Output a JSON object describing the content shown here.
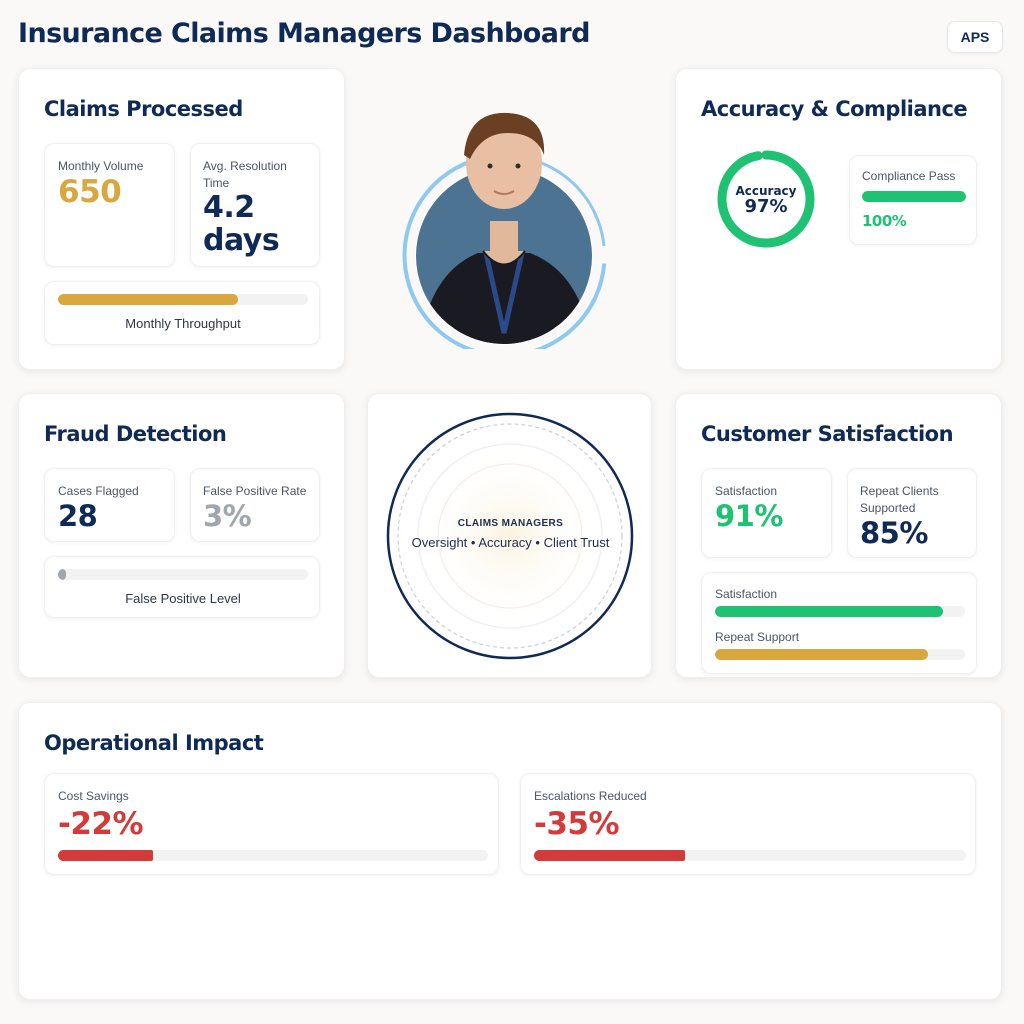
{
  "header": {
    "title": "Insurance Claims Managers Dashboard",
    "badge": "APS"
  },
  "claims": {
    "title": "Claims Processed",
    "monthly_volume_label": "Monthly Volume",
    "monthly_volume_value": "650",
    "resolution_label": "Avg. Resolution Time",
    "resolution_value_line1": "4.2",
    "resolution_value_line2": "days",
    "throughput_label": "Monthly Throughput",
    "throughput_fraction": 0.72
  },
  "profile": {
    "icon": "person-photo"
  },
  "accuracy": {
    "title": "Accuracy & Compliance",
    "ring_label": "Accuracy",
    "ring_value": "97%",
    "ring_fraction": 0.97,
    "compliance_label": "Compliance Pass",
    "compliance_value": "100%",
    "compliance_fraction": 1.0
  },
  "fraud": {
    "title": "Fraud Detection",
    "flagged_label": "Cases Flagged",
    "flagged_value": "28",
    "fpr_label": "False Positive Rate",
    "fpr_value": "3%",
    "level_label": "False Positive Level",
    "level_fraction": 0.03
  },
  "center_badge": {
    "heading": "CLAIMS MANAGERS",
    "tagline": "Oversight • Accuracy • Client Trust"
  },
  "satisfaction": {
    "title": "Customer Satisfaction",
    "sat_label": "Satisfaction",
    "sat_value": "91%",
    "repeat_label": "Repeat Clients Supported",
    "repeat_value": "85%",
    "bar1_label": "Satisfaction",
    "bar1_fraction": 0.91,
    "bar2_label": "Repeat Support",
    "bar2_fraction": 0.85
  },
  "impact": {
    "title": "Operational Impact",
    "cost_label": "Cost Savings",
    "cost_value": "-22%",
    "cost_fraction": 0.22,
    "esc_label": "Escalations Reduced",
    "esc_value": "-35%",
    "esc_fraction": 0.35
  },
  "colors": {
    "navy": "#0f2a55",
    "gold": "#d9a73d",
    "green": "#1fc173",
    "red": "#d33a3a",
    "gray": "#a0a6ad",
    "light_blue": "#8ec9f0"
  }
}
